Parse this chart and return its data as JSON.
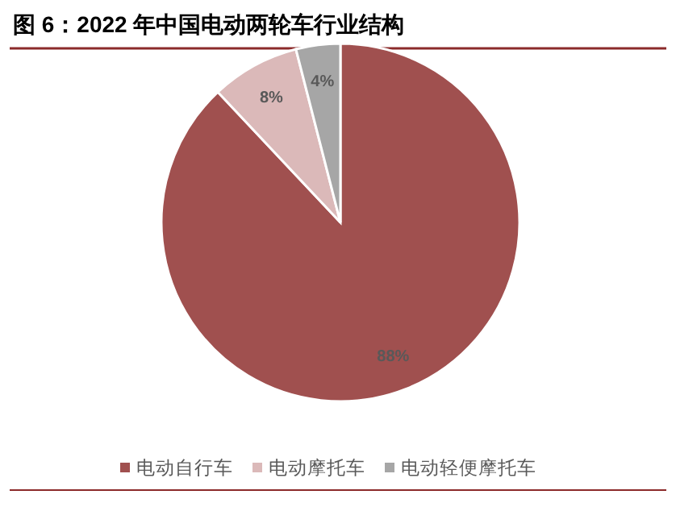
{
  "chart_data": {
    "type": "pie",
    "title": "图 6：2022 年中国电动两轮车行业结构",
    "categories": [
      "电动自行车",
      "电动摩托车",
      "电动轻便摩托车"
    ],
    "values": [
      88,
      8,
      4
    ],
    "colors": [
      "#a0504f",
      "#dbb9b9",
      "#a6a6a6"
    ],
    "value_labels": [
      "88%",
      "8%",
      "4%"
    ],
    "legend": "bottom"
  }
}
